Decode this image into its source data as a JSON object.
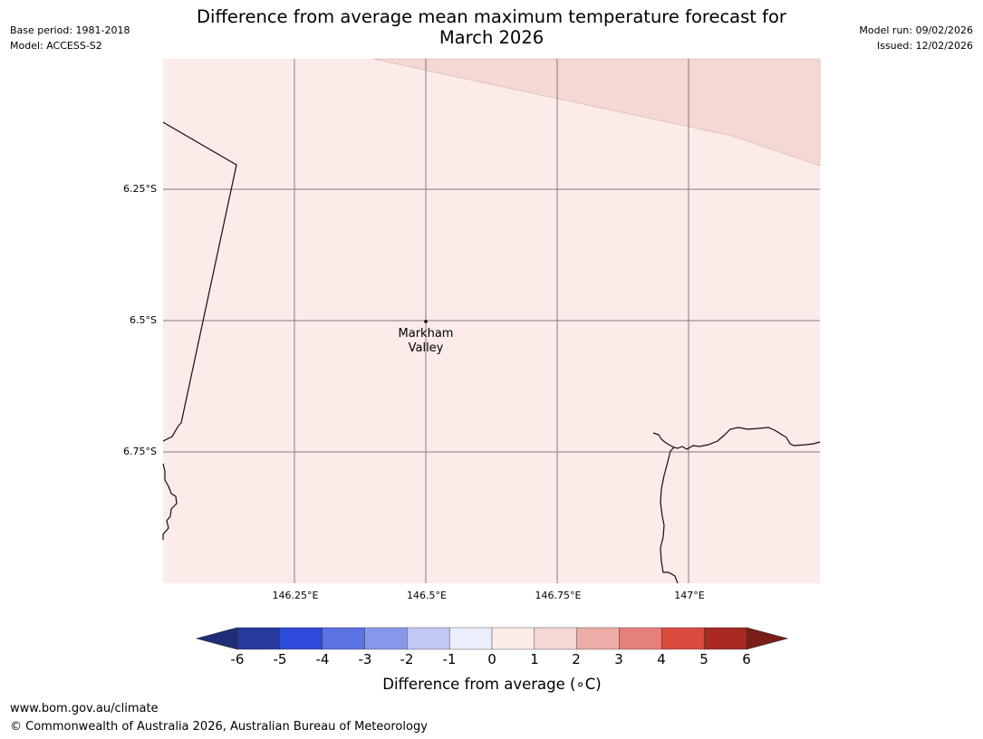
{
  "header": {
    "title_line1": "Difference from average mean maximum temperature forecast for",
    "title_line2": "March 2026",
    "base_period": "Base period: 1981-2018",
    "model": "Model: ACCESS-S2",
    "model_run": "Model run: 09/02/2026",
    "issued": "Issued: 12/02/2026"
  },
  "map": {
    "latitude_labels": [
      "6.25°S",
      "6.5°S",
      "6.75°S"
    ],
    "longitude_labels": [
      "146.25°E",
      "146.5°E",
      "146.75°E",
      "147°E"
    ],
    "place": {
      "name_line1": "Markham",
      "name_line2": "Valley"
    },
    "anomaly_colors": {
      "main_area": "#fbebe9",
      "northeast_area": "#f5d7d3"
    }
  },
  "colorbar": {
    "ticks": [
      "-6",
      "-5",
      "-4",
      "-3",
      "-2",
      "-1",
      "0",
      "1",
      "2",
      "3",
      "4",
      "5",
      "6"
    ],
    "colors": [
      "#27399b",
      "#2d4bd8",
      "#5a72e3",
      "#8797ea",
      "#c0c8f3",
      "#ebeefb",
      "#fbebe9",
      "#f5d7d3",
      "#edaea7",
      "#e6807a",
      "#db4c3f",
      "#a82a22"
    ],
    "extend_low_color": "#1f2e78",
    "extend_high_color": "#7a1e19",
    "label": "Difference from average (∘C)"
  },
  "footer": {
    "url": "www.bom.gov.au/climate",
    "copyright": "© Commonwealth of Australia 2026, Australian Bureau of Meteorology"
  }
}
